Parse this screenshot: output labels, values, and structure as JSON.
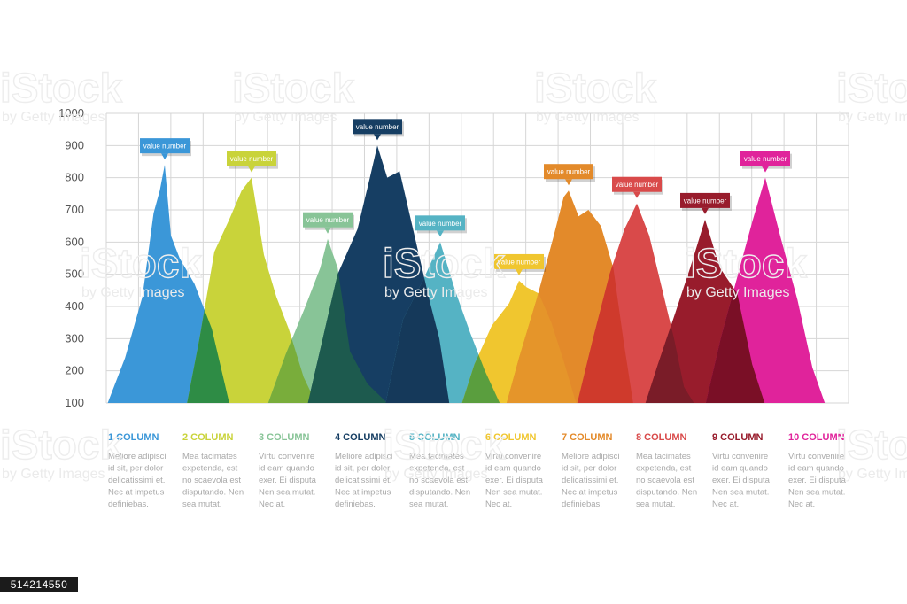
{
  "chart_data": {
    "type": "area",
    "y_ticks": [
      "1000",
      "900",
      "800",
      "700",
      "600",
      "500",
      "400",
      "300",
      "200",
      "100"
    ],
    "ylim": [
      100,
      1000
    ],
    "grid": true,
    "bubble_label": "value number",
    "series": [
      {
        "name": "1 COLUMN",
        "color": "#3b97d8",
        "peak": 840,
        "description": [
          "Meliore adipisci",
          "id sit, per dolor",
          "delicatissimi et.",
          "Nec at impetus",
          "definiebas."
        ],
        "profile": [
          [
            -2.3,
            100
          ],
          [
            -1.6,
            240
          ],
          [
            -0.9,
            430
          ],
          [
            -0.45,
            690
          ],
          [
            -0.2,
            760
          ],
          [
            0,
            840
          ],
          [
            0.25,
            620
          ],
          [
            0.6,
            550
          ],
          [
            1.2,
            470
          ],
          [
            1.9,
            330
          ],
          [
            2.6,
            100
          ]
        ]
      },
      {
        "name": "2 COLUMN",
        "color": "#c9d33a",
        "peak": 800,
        "description": [
          "Mea tacimates",
          "expetenda, est",
          "no scaevola est",
          "disputando. Nen",
          "sea mutat."
        ],
        "profile": [
          [
            -2.6,
            100
          ],
          [
            -2.1,
            300
          ],
          [
            -1.5,
            570
          ],
          [
            -0.9,
            670
          ],
          [
            -0.4,
            760
          ],
          [
            0,
            800
          ],
          [
            0.5,
            560
          ],
          [
            1.0,
            430
          ],
          [
            1.5,
            330
          ],
          [
            2.1,
            180
          ],
          [
            2.6,
            100
          ]
        ]
      },
      {
        "name": "3 COLUMN",
        "color": "#88c497",
        "peak": 610,
        "description": [
          "Virtu convenire",
          "id eam quando",
          "exer. Ei disputa",
          "Nen sea mutat.",
          "Nec at."
        ],
        "profile": [
          [
            -2.4,
            100
          ],
          [
            -1.7,
            250
          ],
          [
            -0.9,
            400
          ],
          [
            -0.3,
            520
          ],
          [
            0,
            610
          ],
          [
            0.4,
            520
          ],
          [
            0.9,
            260
          ],
          [
            1.6,
            160
          ],
          [
            2.4,
            100
          ]
        ]
      },
      {
        "name": "4 COLUMN",
        "color": "#163e63",
        "peak": 900,
        "description": [
          "Meliore adipisci",
          "id sit, per dolor",
          "delicatissimi et.",
          "Nec at impetus",
          "definiebas."
        ],
        "profile": [
          [
            -2.8,
            100
          ],
          [
            -2.2,
            300
          ],
          [
            -1.6,
            500
          ],
          [
            -0.8,
            640
          ],
          [
            -0.3,
            800
          ],
          [
            0,
            900
          ],
          [
            0.4,
            800
          ],
          [
            0.9,
            820
          ],
          [
            1.5,
            620
          ],
          [
            2.1,
            420
          ],
          [
            2.5,
            300
          ],
          [
            2.9,
            100
          ]
        ]
      },
      {
        "name": "5 COLUMN",
        "color": "#55b3c4",
        "peak": 600,
        "description": [
          "Mea tacimates",
          "expetenda, est",
          "no scaevola est",
          "disputando. Nen",
          "sea mutat."
        ],
        "profile": [
          [
            -2.2,
            100
          ],
          [
            -1.5,
            360
          ],
          [
            -0.7,
            480
          ],
          [
            0,
            600
          ],
          [
            0.6,
            450
          ],
          [
            1.2,
            320
          ],
          [
            1.8,
            200
          ],
          [
            2.4,
            100
          ]
        ]
      },
      {
        "name": "6 COLUMN",
        "color": "#f0c62f",
        "peak": 480,
        "description": [
          "Virtu convenire",
          "id eam quando",
          "exer. Ei disputa",
          "Nen sea mutat.",
          "Nec at."
        ],
        "profile": [
          [
            -2.3,
            100
          ],
          [
            -1.8,
            220
          ],
          [
            -1.1,
            340
          ],
          [
            -0.4,
            410
          ],
          [
            0,
            480
          ],
          [
            0.3,
            460
          ],
          [
            0.8,
            440
          ],
          [
            1.3,
            350
          ],
          [
            1.8,
            230
          ],
          [
            2.3,
            100
          ]
        ]
      },
      {
        "name": "7 COLUMN",
        "color": "#e38a2a",
        "peak": 760,
        "description": [
          "Meliore adipisci",
          "id sit, per dolor",
          "delicatissimi et.",
          "Nec at impetus",
          "definiebas."
        ],
        "profile": [
          [
            -2.5,
            100
          ],
          [
            -2.0,
            240
          ],
          [
            -1.3,
            420
          ],
          [
            -0.6,
            620
          ],
          [
            -0.2,
            740
          ],
          [
            0,
            760
          ],
          [
            0.4,
            680
          ],
          [
            0.8,
            700
          ],
          [
            1.3,
            650
          ],
          [
            1.8,
            520
          ],
          [
            2.2,
            300
          ],
          [
            2.6,
            100
          ]
        ]
      },
      {
        "name": "8 COLUMN",
        "color": "#d94a4a",
        "peak": 720,
        "description": [
          "Mea tacimates",
          "expetenda, est",
          "no scaevola est",
          "disputando. Nen",
          "sea mutat."
        ],
        "profile": [
          [
            -2.4,
            100
          ],
          [
            -1.8,
            290
          ],
          [
            -1.1,
            500
          ],
          [
            -0.5,
            640
          ],
          [
            0,
            720
          ],
          [
            0.5,
            620
          ],
          [
            1.0,
            460
          ],
          [
            1.5,
            300
          ],
          [
            1.9,
            150
          ],
          [
            2.3,
            100
          ]
        ]
      },
      {
        "name": "9 COLUMN",
        "color": "#981c2c",
        "peak": 670,
        "description": [
          "Virtu convenire",
          "id eam quando",
          "exer. Ei disputa",
          "Nen sea mutat.",
          "Nec at."
        ],
        "profile": [
          [
            -2.4,
            100
          ],
          [
            -1.9,
            220
          ],
          [
            -1.2,
            380
          ],
          [
            -0.6,
            520
          ],
          [
            0,
            670
          ],
          [
            0.6,
            520
          ],
          [
            1.3,
            440
          ],
          [
            1.9,
            220
          ],
          [
            2.4,
            100
          ]
        ]
      },
      {
        "name": "10 COLUMN",
        "color": "#e0239b",
        "peak": 800,
        "description": [
          "Virtu convenire",
          "id eam quando",
          "exer. Ei disputa",
          "Nen sea mutat.",
          "Nec at."
        ],
        "profile": [
          [
            -2.4,
            100
          ],
          [
            -1.8,
            300
          ],
          [
            -1.1,
            500
          ],
          [
            -0.5,
            670
          ],
          [
            0,
            800
          ],
          [
            0.6,
            620
          ],
          [
            1.3,
            420
          ],
          [
            1.9,
            210
          ],
          [
            2.4,
            100
          ]
        ]
      }
    ],
    "overlaps": [
      {
        "between": [
          1,
          2
        ],
        "color": "#2e8c45"
      },
      {
        "between": [
          2,
          3
        ],
        "color": "#79ad3b"
      },
      {
        "between": [
          3,
          4
        ],
        "color": "#1d5a4e"
      },
      {
        "between": [
          4,
          5
        ],
        "color": "#15395a"
      },
      {
        "between": [
          5,
          6
        ],
        "color": "#5a9e3e"
      },
      {
        "between": [
          6,
          7
        ],
        "color": "#e5952a"
      },
      {
        "between": [
          7,
          8
        ],
        "color": "#cf3a2c"
      },
      {
        "between": [
          8,
          9
        ],
        "color": "#7a1c28"
      },
      {
        "between": [
          9,
          10
        ],
        "color": "#7a0f26"
      }
    ]
  },
  "watermark": {
    "brand": "iStock",
    "credit": "by Getty Images"
  },
  "stock_id": "514214550"
}
